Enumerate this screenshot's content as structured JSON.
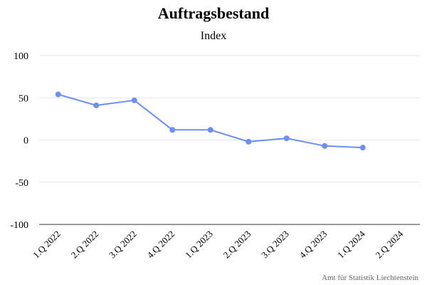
{
  "chart": {
    "title": "Auftragsbestand",
    "subtitle": "Index",
    "credit": "Amt für Statistik Liechtenstein"
  },
  "colors": {
    "series": "#6b8ff5",
    "grid": "#e6e6e6",
    "axis": "#333333"
  },
  "chart_data": {
    "type": "line",
    "title": "Auftragsbestand",
    "subtitle": "Index",
    "xlabel": "",
    "ylabel": "",
    "categories": [
      "1.Q 2022",
      "2.Q 2022",
      "3.Q 2022",
      "4.Q 2022",
      "1.Q 2023",
      "2.Q 2023",
      "3.Q 2023",
      "4.Q 2023",
      "1.Q 2024",
      "2.Q 2024"
    ],
    "series": [
      {
        "values": [
          54,
          41,
          47,
          12,
          12,
          -2,
          2,
          -7,
          -9,
          null
        ]
      }
    ],
    "ylim": [
      -100,
      100
    ],
    "yticks": [
      100,
      50,
      0,
      -50,
      -100
    ],
    "grid": true,
    "legend": "none",
    "credit": "Amt für Statistik Liechtenstein"
  }
}
